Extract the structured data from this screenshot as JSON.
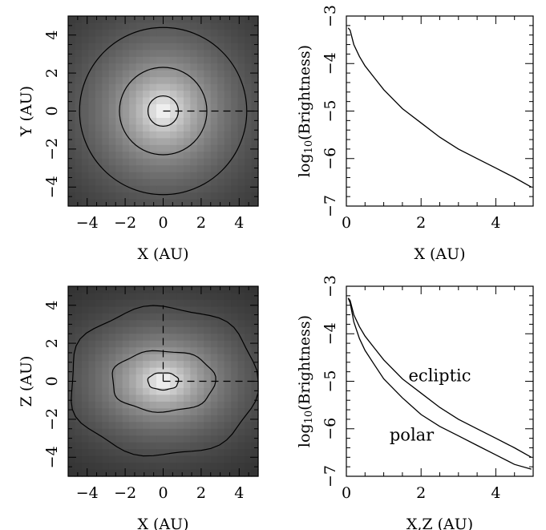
{
  "chart_data": [
    {
      "type": "heatmap",
      "xlabel": "X (AU)",
      "ylabel": "Y (AU)",
      "xlim": [
        -5,
        5
      ],
      "ylim": [
        -5,
        5
      ],
      "xticks": [
        -4,
        -2,
        0,
        2,
        4
      ],
      "yticks": [
        -4,
        -2,
        0,
        2,
        4
      ],
      "colormap": [
        "#222222",
        "#ffffff"
      ],
      "contour_radii": [
        0.8,
        2.3,
        4.4
      ],
      "dashed_line": [
        [
          0,
          0
        ],
        [
          5,
          0
        ]
      ]
    },
    {
      "type": "line",
      "xlabel": "X (AU)",
      "ylabel": "log10(Brightness)",
      "xlim": [
        0,
        5
      ],
      "ylim": [
        -7,
        -3
      ],
      "xticks": [
        0,
        2,
        4
      ],
      "yticks": [
        -7,
        -6,
        -5,
        -4,
        -3
      ],
      "x": [
        0.05,
        0.1,
        0.2,
        0.35,
        0.5,
        0.75,
        1.0,
        1.5,
        2.0,
        2.5,
        3.0,
        3.5,
        4.0,
        4.5,
        4.95
      ],
      "series": [
        {
          "values": [
            -3.25,
            -3.3,
            -3.6,
            -3.85,
            -4.05,
            -4.3,
            -4.55,
            -4.95,
            -5.25,
            -5.55,
            -5.8,
            -6.0,
            -6.2,
            -6.4,
            -6.6
          ]
        }
      ]
    },
    {
      "type": "heatmap",
      "xlabel": "X (AU)",
      "ylabel": "Z (AU)",
      "xlim": [
        -5,
        5
      ],
      "ylim": [
        -5,
        5
      ],
      "xticks": [
        -4,
        -2,
        0,
        2,
        4
      ],
      "yticks": [
        -4,
        -2,
        0,
        2,
        4
      ],
      "colormap": [
        "#222222",
        "#ffffff"
      ],
      "contours": [
        {
          "rx": 0.8,
          "rz": 0.45
        },
        {
          "rx": 2.7,
          "rz": 1.6
        },
        {
          "rx": 4.9,
          "rz": 3.9
        }
      ],
      "dashed_lines": [
        [
          [
            0,
            0
          ],
          [
            5,
            0
          ]
        ],
        [
          [
            0,
            0
          ],
          [
            0,
            4
          ]
        ]
      ]
    },
    {
      "type": "line",
      "xlabel": "X,Z (AU)",
      "ylabel": "log10(Brightness)",
      "xlim": [
        0,
        5
      ],
      "ylim": [
        -7,
        -3
      ],
      "xticks": [
        0,
        2,
        4
      ],
      "yticks": [
        -7,
        -6,
        -5,
        -4,
        -3
      ],
      "x": [
        0.05,
        0.1,
        0.2,
        0.35,
        0.5,
        0.75,
        1.0,
        1.5,
        2.0,
        2.5,
        3.0,
        3.5,
        4.0,
        4.5,
        4.95
      ],
      "series": [
        {
          "name": "ecliptic",
          "values": [
            -3.25,
            -3.3,
            -3.6,
            -3.85,
            -4.05,
            -4.3,
            -4.55,
            -4.95,
            -5.25,
            -5.55,
            -5.8,
            -6.0,
            -6.2,
            -6.4,
            -6.6
          ]
        },
        {
          "name": "polar",
          "values": [
            -3.25,
            -3.35,
            -3.75,
            -4.1,
            -4.35,
            -4.65,
            -4.95,
            -5.35,
            -5.7,
            -5.95,
            -6.15,
            -6.35,
            -6.55,
            -6.75,
            -6.85
          ]
        }
      ]
    }
  ]
}
